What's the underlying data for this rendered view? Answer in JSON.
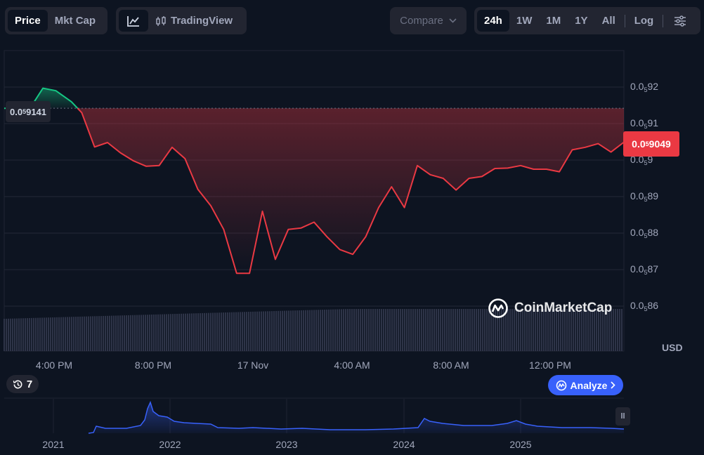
{
  "toolbar": {
    "price_label": "Price",
    "mktcap_label": "Mkt Cap",
    "tradingview_label": "TradingView",
    "compare_label": "Compare",
    "ranges": [
      "24h",
      "1W",
      "1M",
      "1Y",
      "All"
    ],
    "active_range": "24h",
    "log_label": "Log"
  },
  "chart_data": {
    "type": "line",
    "title": "",
    "ylabel": "USD",
    "y_ticks": [
      {
        "prefix": "0.0",
        "sub": "5",
        "suffix": "92"
      },
      {
        "prefix": "0.0",
        "sub": "5",
        "suffix": "91"
      },
      {
        "prefix": "0.0",
        "sub": "5",
        "suffix": "9"
      },
      {
        "prefix": "0.0",
        "sub": "5",
        "suffix": "89"
      },
      {
        "prefix": "0.0",
        "sub": "5",
        "suffix": "88"
      },
      {
        "prefix": "0.0",
        "sub": "5",
        "suffix": "87"
      },
      {
        "prefix": "0.0",
        "sub": "5",
        "suffix": "86"
      }
    ],
    "x_ticks": [
      "4:00 PM",
      "8:00 PM",
      "17 Nov",
      "4:00 AM",
      "8:00 AM",
      "12:00 PM"
    ],
    "current_price": {
      "prefix": "0.0",
      "sub": "5",
      "suffix": "9049"
    },
    "open_price": {
      "prefix": "0.0",
      "sub": "5",
      "suffix": "9141"
    },
    "up_color": "#16c784",
    "down_color": "#ea3943",
    "x_hours": [
      0,
      1,
      1.5,
      2,
      2.6,
      3,
      3.5,
      4,
      4.5,
      5,
      5.5,
      6,
      6.5,
      7,
      7.5,
      8,
      8.5,
      9,
      9.5,
      10,
      10.5,
      11,
      11.5,
      12,
      12.5,
      13,
      13.5,
      14,
      14.5,
      15,
      15.5,
      16,
      16.5,
      17,
      17.5,
      18,
      18.5,
      19,
      19.5,
      20,
      20.5,
      21,
      21.5,
      22,
      22.5,
      23,
      23.5,
      24
    ],
    "values": [
      9.142,
      9.142,
      9.197,
      9.19,
      9.16,
      9.13,
      9.036,
      9.048,
      9.02,
      8.998,
      8.983,
      8.985,
      9.035,
      9.004,
      8.92,
      8.875,
      8.81,
      8.69,
      8.69,
      8.86,
      8.728,
      8.81,
      8.814,
      8.83,
      8.79,
      8.755,
      8.742,
      8.79,
      8.87,
      8.927,
      8.87,
      8.985,
      8.96,
      8.95,
      8.918,
      8.95,
      8.955,
      8.977,
      8.978,
      8.985,
      8.975,
      8.975,
      8.968,
      9.028,
      9.035,
      9.045,
      9.022,
      9.049
    ],
    "volume_note": "",
    "brush": {
      "x_labels": [
        "2021",
        "2022",
        "2023",
        "2024",
        "2025"
      ]
    }
  },
  "watermark": "CoinMarketCap",
  "history_count": "7",
  "analyze_label": "Analyze",
  "usd_label": "USD"
}
